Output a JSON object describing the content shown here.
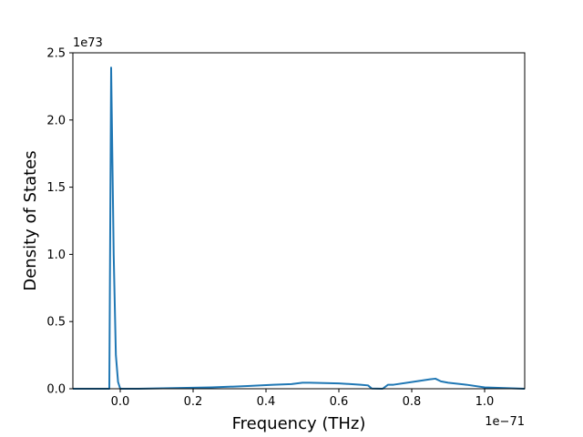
{
  "chart_data": {
    "type": "line",
    "title": "",
    "xlabel": "Frequency (THz)",
    "ylabel": "Density of States",
    "x_offset_label": "1e−71",
    "y_offset_label": "1e73",
    "xlim": [
      -0.13,
      1.11
    ],
    "ylim": [
      0,
      2.5
    ],
    "x_ticks": [
      0.0,
      0.2,
      0.4,
      0.6,
      0.8,
      1.0
    ],
    "x_tick_labels": [
      "0.0",
      "0.2",
      "0.4",
      "0.6",
      "0.8",
      "1.0"
    ],
    "y_ticks": [
      0.0,
      0.5,
      1.0,
      1.5,
      2.0,
      2.5
    ],
    "y_tick_labels": [
      "0.0",
      "0.5",
      "1.0",
      "1.5",
      "2.0",
      "2.5"
    ],
    "grid": false,
    "line_color": "#1f77b4",
    "series": [
      {
        "x": [
          -0.13,
          -0.03,
          -0.025,
          -0.018,
          -0.012,
          -0.006,
          0.0,
          0.05,
          0.15,
          0.25,
          0.35,
          0.42,
          0.47,
          0.5,
          0.52,
          0.6,
          0.66,
          0.68,
          0.69,
          0.72,
          0.735,
          0.75,
          0.8,
          0.85,
          0.865,
          0.88,
          0.9,
          0.95,
          1.0,
          1.11
        ],
        "y": [
          0.0,
          0.0,
          2.39,
          1.0,
          0.25,
          0.05,
          0.0,
          0.0,
          0.005,
          0.01,
          0.02,
          0.03,
          0.035,
          0.045,
          0.045,
          0.04,
          0.03,
          0.025,
          0.002,
          0.0,
          0.03,
          0.03,
          0.05,
          0.07,
          0.075,
          0.055,
          0.045,
          0.03,
          0.01,
          0.0
        ]
      }
    ]
  }
}
